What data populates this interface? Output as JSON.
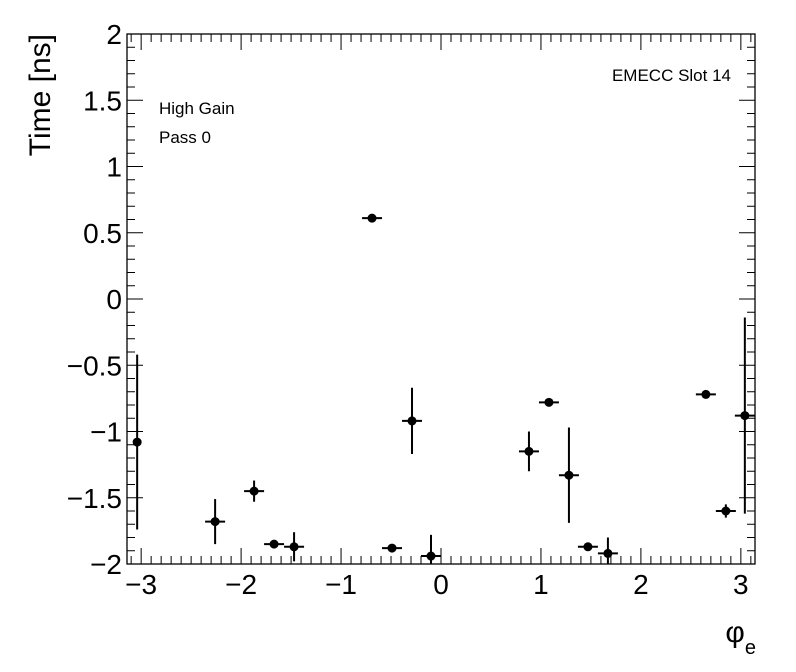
{
  "chart_data": {
    "type": "scatter",
    "xlabel": "φ",
    "xlabel_sub": "e",
    "ylabel": "Time [ns]",
    "annotations": [
      "High Gain",
      "Pass 0"
    ],
    "label": "EMECC Slot 14",
    "xlim": [
      -3.14159,
      3.14159
    ],
    "ylim": [
      -2,
      2
    ],
    "xticks": [
      -3,
      -2,
      -1,
      0,
      1,
      2,
      3
    ],
    "xtick_labels": [
      "−3",
      "−2",
      "−1",
      "0",
      "1",
      "2",
      "3"
    ],
    "yticks": [
      -2,
      -1.5,
      -1,
      -0.5,
      0,
      0.5,
      1,
      1.5,
      2
    ],
    "ytick_labels": [
      "−2",
      "−1.5",
      "−1",
      "−0.5",
      "0",
      "0.5",
      "1",
      "1.5",
      "2"
    ],
    "grid": false,
    "points": [
      {
        "x": -3.04,
        "y": -1.08,
        "xerr": 0.04,
        "yerr": 0.66
      },
      {
        "x": -2.26,
        "y": -1.68,
        "xerr": 0.1,
        "yerr": 0.17
      },
      {
        "x": -1.87,
        "y": -1.45,
        "xerr": 0.1,
        "yerr": 0.08
      },
      {
        "x": -1.67,
        "y": -1.85,
        "xerr": 0.1,
        "yerr": 0.02
      },
      {
        "x": -1.47,
        "y": -1.87,
        "xerr": 0.1,
        "yerr": 0.11
      },
      {
        "x": -0.69,
        "y": 0.61,
        "xerr": 0.1,
        "yerr": 0.02
      },
      {
        "x": -0.49,
        "y": -1.88,
        "xerr": 0.1,
        "yerr": 0.02
      },
      {
        "x": -0.29,
        "y": -0.92,
        "xerr": 0.1,
        "yerr": 0.25
      },
      {
        "x": -0.1,
        "y": -1.94,
        "xerr": 0.1,
        "yerr": 0.16
      },
      {
        "x": 0.88,
        "y": -1.15,
        "xerr": 0.1,
        "yerr": 0.15
      },
      {
        "x": 1.08,
        "y": -0.78,
        "xerr": 0.1,
        "yerr": 0.02
      },
      {
        "x": 1.28,
        "y": -1.33,
        "xerr": 0.1,
        "yerr": 0.36
      },
      {
        "x": 1.47,
        "y": -1.87,
        "xerr": 0.1,
        "yerr": 0.02
      },
      {
        "x": 1.67,
        "y": -1.92,
        "xerr": 0.1,
        "yerr": 0.12
      },
      {
        "x": 2.65,
        "y": -0.72,
        "xerr": 0.1,
        "yerr": 0.02
      },
      {
        "x": 2.85,
        "y": -1.6,
        "xerr": 0.1,
        "yerr": 0.05
      },
      {
        "x": 3.04,
        "y": -0.88,
        "xerr": 0.1,
        "yerr": 0.74
      }
    ]
  }
}
